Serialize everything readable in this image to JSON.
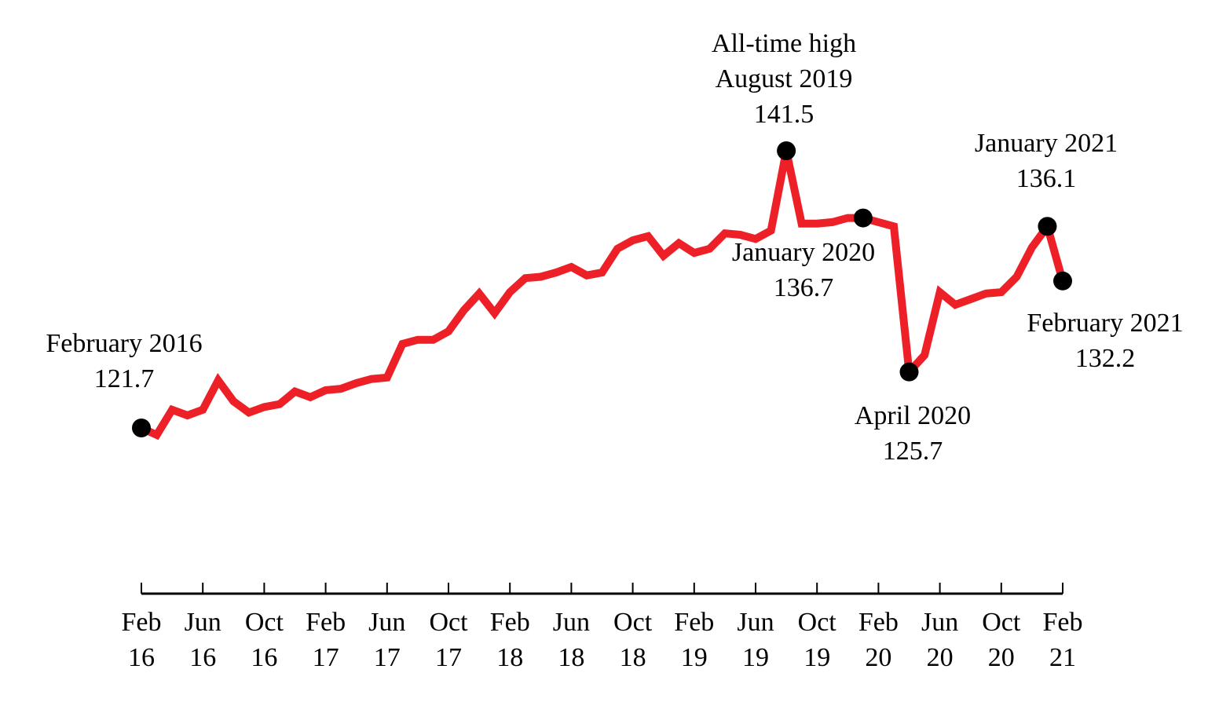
{
  "chart_data": {
    "type": "line",
    "title": "",
    "xlabel": "",
    "ylabel": "",
    "ylim": [
      115,
      145
    ],
    "grid": false,
    "colors": {
      "line": "#ed2028",
      "marker": "#000000",
      "axis": "#000000"
    },
    "x_ticks": [
      {
        "month": "Feb",
        "year": "16"
      },
      {
        "month": "Jun",
        "year": "16"
      },
      {
        "month": "Oct",
        "year": "16"
      },
      {
        "month": "Feb",
        "year": "17"
      },
      {
        "month": "Jun",
        "year": "17"
      },
      {
        "month": "Oct",
        "year": "17"
      },
      {
        "month": "Feb",
        "year": "18"
      },
      {
        "month": "Jun",
        "year": "18"
      },
      {
        "month": "Oct",
        "year": "18"
      },
      {
        "month": "Feb",
        "year": "19"
      },
      {
        "month": "Jun",
        "year": "19"
      },
      {
        "month": "Oct",
        "year": "19"
      },
      {
        "month": "Feb",
        "year": "20"
      },
      {
        "month": "Jun",
        "year": "20"
      },
      {
        "month": "Oct",
        "year": "20"
      },
      {
        "month": "Feb",
        "year": "21"
      }
    ],
    "series": [
      {
        "x": [
          "2016-02",
          "2016-03",
          "2016-04",
          "2016-05",
          "2016-06",
          "2016-07",
          "2016-08",
          "2016-09",
          "2016-10",
          "2016-11",
          "2016-12",
          "2017-01",
          "2017-02",
          "2017-03",
          "2017-04",
          "2017-05",
          "2017-06",
          "2017-07",
          "2017-08",
          "2017-09",
          "2017-10",
          "2017-11",
          "2017-12",
          "2018-01",
          "2018-02",
          "2018-03",
          "2018-04",
          "2018-05",
          "2018-06",
          "2018-07",
          "2018-08",
          "2018-09",
          "2018-10",
          "2018-11",
          "2018-12",
          "2019-01",
          "2019-02",
          "2019-03",
          "2019-04",
          "2019-05",
          "2019-06",
          "2019-07",
          "2019-08",
          "2019-09",
          "2019-10",
          "2019-11",
          "2019-12",
          "2020-01",
          "2020-02",
          "2020-03",
          "2020-04",
          "2020-05",
          "2020-06",
          "2020-07",
          "2020-08",
          "2020-09",
          "2020-10",
          "2020-11",
          "2020-12",
          "2021-01",
          "2021-02"
        ],
        "values": [
          121.7,
          121.2,
          123.0,
          122.6,
          123.0,
          125.1,
          123.6,
          122.8,
          123.2,
          123.4,
          124.3,
          123.9,
          124.4,
          124.5,
          124.9,
          125.2,
          125.3,
          127.7,
          128.0,
          128.0,
          128.6,
          130.1,
          131.3,
          129.9,
          131.4,
          132.4,
          132.5,
          132.8,
          133.2,
          132.6,
          132.8,
          134.5,
          135.1,
          135.4,
          134.0,
          134.9,
          134.2,
          134.5,
          135.6,
          135.5,
          135.2,
          135.8,
          141.5,
          136.3,
          136.3,
          136.4,
          136.7,
          136.7,
          136.4,
          136.1,
          125.7,
          126.9,
          131.4,
          130.5,
          130.9,
          131.3,
          131.4,
          132.5,
          134.6,
          136.1,
          132.2
        ]
      }
    ],
    "annotations": [
      {
        "lines": [
          "February 2016",
          "121.7"
        ],
        "x": "2016-02",
        "y": 121.7
      },
      {
        "lines": [
          "All-time high",
          "August 2019",
          "141.5"
        ],
        "x": "2019-08",
        "y": 141.5
      },
      {
        "lines": [
          "January 2020",
          "136.7"
        ],
        "x": "2020-01",
        "y": 136.7
      },
      {
        "lines": [
          "April 2020",
          "125.7"
        ],
        "x": "2020-04",
        "y": 125.7
      },
      {
        "lines": [
          "January 2021",
          "136.1"
        ],
        "x": "2021-01",
        "y": 136.1
      },
      {
        "lines": [
          "February 2021",
          "132.2"
        ],
        "x": "2021-02",
        "y": 132.2
      }
    ]
  }
}
